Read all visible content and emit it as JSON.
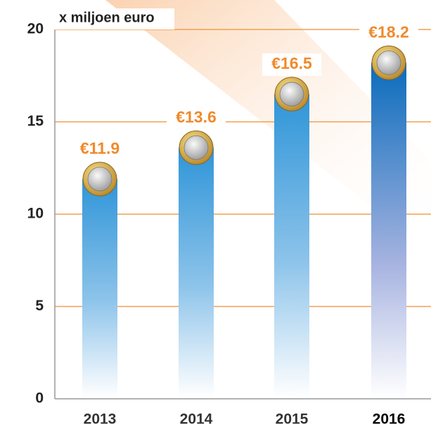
{
  "chart_data": {
    "type": "bar",
    "y_axis_label": "x miljoen euro",
    "categories": [
      "2013",
      "2014",
      "2015",
      "2016"
    ],
    "values": [
      11.9,
      13.6,
      16.5,
      18.2
    ],
    "value_labels": [
      "€11.9",
      "€13.6",
      "€16.5",
      "€18.2"
    ],
    "colors": [
      "#2f95d8",
      "#2f95d8",
      "#2f95d8",
      "#0a6cbc"
    ],
    "highlight": "2016",
    "ylim": [
      0,
      20
    ],
    "yticks": [
      0,
      5,
      10,
      15,
      20
    ],
    "grid": true,
    "grid_color": "#f0a050"
  }
}
